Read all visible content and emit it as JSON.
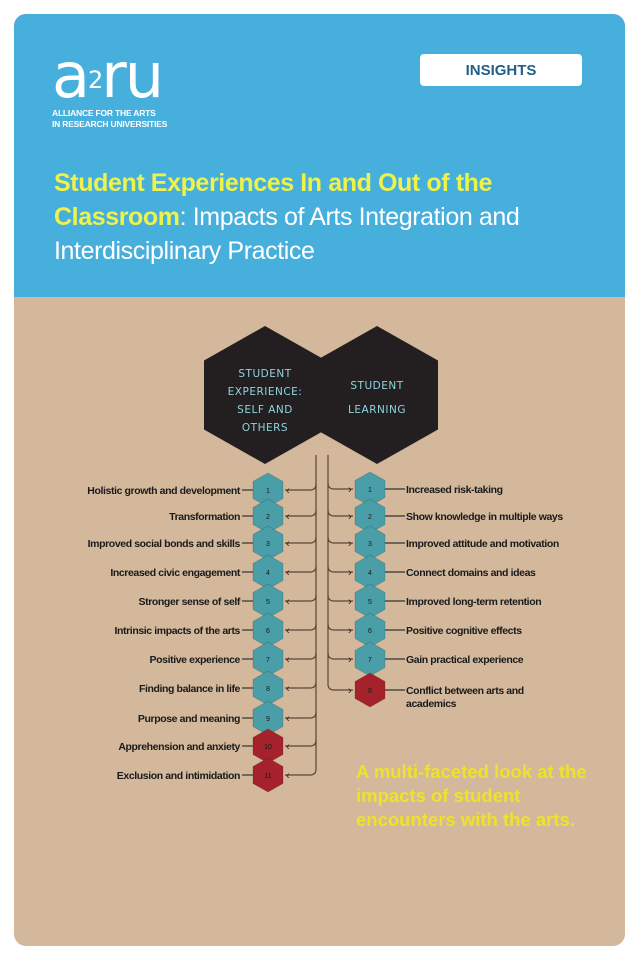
{
  "header": {
    "logo_text": "a2ru",
    "logo_subtitle_line1": "ALLIANCE FOR THE ARTS",
    "logo_subtitle_line2": "IN RESEARCH UNIVERSITIES",
    "badge": "INSIGHTS",
    "title_highlight": "Student Experiences In and Out of the Classroom",
    "title_rest": ": Impacts of Arts Integration and Interdisciplinary Practice"
  },
  "diagram": {
    "left_hub": [
      "STUDENT",
      "EXPERIENCE:",
      "SELF AND",
      "OTHERS"
    ],
    "right_hub": [
      "STUDENT",
      "LEARNING"
    ],
    "left_items": [
      {
        "num": "1",
        "label": "Holistic growth and development",
        "kind": "positive"
      },
      {
        "num": "2",
        "label": "Transformation",
        "kind": "positive"
      },
      {
        "num": "3",
        "label": "Improved social bonds and skills",
        "kind": "positive"
      },
      {
        "num": "4",
        "label": "Increased civic engagement",
        "kind": "positive"
      },
      {
        "num": "5",
        "label": "Stronger sense of self",
        "kind": "positive"
      },
      {
        "num": "6",
        "label": "Intrinsic impacts of the arts",
        "kind": "positive"
      },
      {
        "num": "7",
        "label": "Positive experience",
        "kind": "positive"
      },
      {
        "num": "8",
        "label": "Finding balance in life",
        "kind": "positive"
      },
      {
        "num": "9",
        "label": "Purpose and meaning",
        "kind": "positive"
      },
      {
        "num": "10",
        "label": "Apprehension and anxiety",
        "kind": "negative"
      },
      {
        "num": "11",
        "label": "Exclusion and intimidation",
        "kind": "negative"
      }
    ],
    "right_items": [
      {
        "num": "1",
        "label": "Increased risk-taking",
        "kind": "positive"
      },
      {
        "num": "2",
        "label": "Show knowledge in multiple ways",
        "kind": "positive"
      },
      {
        "num": "3",
        "label": "Improved attitude and motivation",
        "kind": "positive"
      },
      {
        "num": "4",
        "label": "Connect domains and ideas",
        "kind": "positive"
      },
      {
        "num": "5",
        "label": "Improved long-term retention",
        "kind": "positive"
      },
      {
        "num": "6",
        "label": "Positive cognitive effects",
        "kind": "positive"
      },
      {
        "num": "7",
        "label": "Gain practical experience",
        "kind": "positive"
      },
      {
        "num": "8",
        "label": "Conflict between arts and academics",
        "kind": "negative"
      }
    ],
    "colors": {
      "positive": "#4a9ea8",
      "negative": "#a5222c",
      "hub": "#231f20",
      "hub_text": "#8fd3e0"
    }
  },
  "tagline": "A multi-faceted look at the impacts of student encounters with the arts.",
  "colors": {
    "header_bg": "#47afdc",
    "body_bg": "#d3b89c",
    "highlight": "#eef24a",
    "tagline": "#eee22a"
  }
}
